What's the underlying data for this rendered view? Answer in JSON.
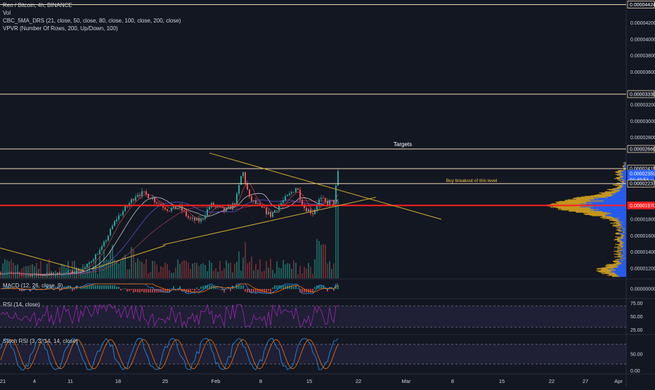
{
  "header": {
    "symbol_line": "Ren / Bitcoin, 4h, BINANCE",
    "vol_line": "Vol",
    "ma_line": "CBC_5MA_DRS (21, close, 50, close, 80, close, 100, close, 200, close)",
    "vpvr_line": "VPVR (Number Of Rows, 200, Up/Down, 100)"
  },
  "panes": {
    "macd_label": "MACD (12, 26, close, 9)",
    "rsi_label": "RSI (14, close)",
    "stoch_label": "Stoch RSI (3, 3, 14, 14, close)"
  },
  "annotations": {
    "targets": "Targets",
    "breakout": "Buy breakout of this level"
  },
  "colors": {
    "background": "#131722",
    "up": "#26a69a",
    "down": "#ef5350",
    "trendline": "#d6ad2f",
    "target_line": "#f0d9b5",
    "support_line": "#ff2020",
    "vpvr_up": "#2962ff",
    "vpvr_down": "#d6a21e",
    "rsi": "#9c27b0",
    "macd": "#2196f3",
    "signal": "#ff6d00"
  },
  "chart_data": [
    {
      "type": "candlestick",
      "title": "Ren / Bitcoin, 4h, BINANCE",
      "ylim": [
        1.08e-05,
        4.48e-05
      ],
      "y_ticks": [
        "0.00004200",
        "0.00004000",
        "0.00003800",
        "0.00003600",
        "0.00003200",
        "0.00003000",
        "0.00002800",
        "0.00001800",
        "0.00001600",
        "0.00001400",
        "0.00001200"
      ],
      "x_ticks": [
        "21",
        "4",
        "11",
        "18",
        "25",
        "Feb",
        "8",
        "15",
        "22",
        "Mar",
        "8",
        "15",
        "22",
        "27",
        "Apr"
      ],
      "price_labels": [
        {
          "text": "0.00004424",
          "value": 4.424e-05,
          "kind": "target"
        },
        {
          "text": "0.00003330",
          "value": 3.33e-05,
          "kind": "target"
        },
        {
          "text": "0.00002660",
          "value": 2.66e-05,
          "kind": "target"
        },
        {
          "text": "0.00002419",
          "value": 2.419e-05,
          "kind": "target"
        },
        {
          "text": "0.00002359",
          "value": 2.359e-05,
          "kind": "last"
        },
        {
          "text": "01:40:51",
          "value": 2.28e-05,
          "kind": "countdown"
        },
        {
          "text": "0.00002237",
          "value": 2.237e-05,
          "kind": "breakout"
        },
        {
          "text": "0.00001970",
          "value": 1.97e-05,
          "kind": "support"
        }
      ],
      "horizontal_levels": [
        4.424e-05,
        3.33e-05,
        2.66e-05,
        2.419e-05,
        2.237e-05
      ],
      "support_level": 1.97e-05,
      "anchors": [
        {
          "x": 0,
          "y": 1.15e-05
        },
        {
          "x": 25,
          "y": 1.13e-05
        },
        {
          "x": 55,
          "y": 1.12e-05
        },
        {
          "x": 90,
          "y": 1.14e-05
        },
        {
          "x": 120,
          "y": 1.2e-05
        },
        {
          "x": 145,
          "y": 1.45e-05
        },
        {
          "x": 165,
          "y": 1.8e-05
        },
        {
          "x": 180,
          "y": 1.95e-05
        },
        {
          "x": 195,
          "y": 2.12e-05
        },
        {
          "x": 210,
          "y": 2.1e-05
        },
        {
          "x": 225,
          "y": 2e-05
        },
        {
          "x": 240,
          "y": 1.92e-05
        },
        {
          "x": 255,
          "y": 1.95e-05
        },
        {
          "x": 270,
          "y": 1.8e-05
        },
        {
          "x": 285,
          "y": 1.78e-05
        },
        {
          "x": 300,
          "y": 1.98e-05
        },
        {
          "x": 320,
          "y": 1.9e-05
        },
        {
          "x": 335,
          "y": 2e-05
        },
        {
          "x": 345,
          "y": 2.4e-05
        },
        {
          "x": 355,
          "y": 2.05e-05
        },
        {
          "x": 370,
          "y": 1.95e-05
        },
        {
          "x": 385,
          "y": 1.85e-05
        },
        {
          "x": 400,
          "y": 2e-05
        },
        {
          "x": 412,
          "y": 2.1e-05
        },
        {
          "x": 422,
          "y": 2.2e-05
        },
        {
          "x": 432,
          "y": 1.95e-05
        },
        {
          "x": 445,
          "y": 1.88e-05
        },
        {
          "x": 455,
          "y": 2.05e-05
        },
        {
          "x": 465,
          "y": 2e-05
        },
        {
          "x": 475,
          "y": 2.02e-05
        },
        {
          "x": 481,
          "y": 2.36e-05
        }
      ],
      "trendlines": [
        {
          "from": {
            "x": 298,
            "y": 2.61e-05
          },
          "to": {
            "x": 628,
            "y": 1.8e-05
          }
        },
        {
          "from": {
            "x": 232,
            "y": 1.49e-05
          },
          "to": {
            "x": 535,
            "y": 2.07e-05
          }
        },
        {
          "from": {
            "x": 0,
            "y": 1.45e-05
          },
          "to": {
            "x": 120,
            "y": 1.17e-05
          }
        },
        {
          "from": {
            "x": 130,
            "y": 1.19e-05
          },
          "to": {
            "x": 235,
            "y": 1.48e-05
          }
        }
      ],
      "macd_ylim": [
        -1,
        1
      ],
      "macd_ticks": [
        "0.00000000"
      ],
      "rsi_ylim": [
        18,
        82
      ],
      "rsi_ticks": [
        "75.00",
        "50.00",
        "25.00"
      ],
      "stoch_ylim": [
        -8,
        108
      ],
      "stoch_ticks": [
        "50.00",
        "0.00"
      ]
    }
  ]
}
